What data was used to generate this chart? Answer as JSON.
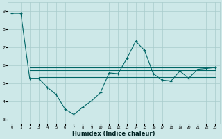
{
  "xlabel": "Humidex (Indice chaleur)",
  "bg_color": "#cde8e8",
  "grid_color": "#a8cccc",
  "line_color": "#006666",
  "xlim": [
    -0.5,
    23.5
  ],
  "ylim": [
    2.8,
    9.5
  ],
  "yticks": [
    3,
    4,
    5,
    6,
    7,
    8,
    9
  ],
  "xticks": [
    0,
    1,
    2,
    3,
    4,
    5,
    6,
    7,
    8,
    9,
    10,
    11,
    12,
    13,
    14,
    15,
    16,
    17,
    18,
    19,
    20,
    21,
    22,
    23
  ],
  "line1_x": [
    0,
    1,
    2,
    3,
    4,
    5,
    6,
    7,
    8,
    9,
    10,
    11,
    12,
    13,
    14,
    15,
    16,
    17,
    18,
    19,
    20,
    21,
    22,
    23
  ],
  "line1_y": [
    8.9,
    8.9,
    5.3,
    5.3,
    4.8,
    4.4,
    3.6,
    3.3,
    3.7,
    4.05,
    4.5,
    5.6,
    5.55,
    6.4,
    7.35,
    6.85,
    5.55,
    5.2,
    5.15,
    5.7,
    5.3,
    5.8,
    5.85,
    5.9
  ],
  "line2_x": [
    2,
    23
  ],
  "line2_y": [
    5.9,
    5.9
  ],
  "line3_x": [
    2,
    23
  ],
  "line3_y": [
    5.75,
    5.75
  ],
  "line4_x": [
    3,
    23
  ],
  "line4_y": [
    5.55,
    5.55
  ],
  "line5_x": [
    3,
    23
  ],
  "line5_y": [
    5.35,
    5.35
  ]
}
